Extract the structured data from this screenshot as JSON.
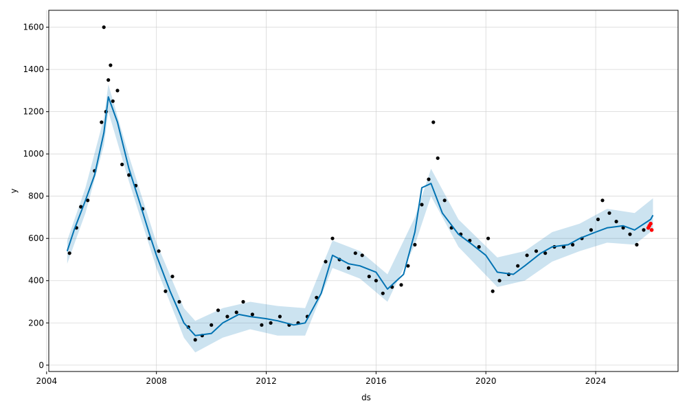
{
  "chart_data": {
    "type": "line",
    "xlabel": "ds",
    "ylabel": "y",
    "xlim": [
      "2004-01-30",
      "2027-01-01"
    ],
    "ylim": [
      -30,
      1680
    ],
    "x_ticks": [
      "2004-01-01",
      "2008-01-01",
      "2012-01-01",
      "2016-01-01",
      "2020-01-01",
      "2024-01-01"
    ],
    "x_tick_labels": [
      "2004",
      "2008",
      "2012",
      "2016",
      "2020",
      "2024"
    ],
    "y_ticks": [
      0,
      200,
      400,
      600,
      800,
      1000,
      1200,
      1400,
      1600
    ],
    "grid": true,
    "colors": {
      "forecast_line": "#0072B2",
      "uncertainty_band": "#0072B2",
      "observed_points": "#000000",
      "highlight_points": "#ff0000"
    },
    "series": [
      {
        "role": "forecast",
        "x": [
          "2004-10-01",
          "2005-01-01",
          "2005-06-01",
          "2005-10-01",
          "2006-02-01",
          "2006-04-01",
          "2006-08-01",
          "2007-01-01",
          "2007-06-01",
          "2007-10-01",
          "2008-01-01",
          "2008-07-01",
          "2009-01-01",
          "2009-06-01",
          "2010-01-01",
          "2010-06-01",
          "2011-01-01",
          "2011-06-01",
          "2012-01-01",
          "2012-06-01",
          "2013-01-01",
          "2013-06-01",
          "2014-01-01",
          "2014-06-01",
          "2015-01-01",
          "2015-06-01",
          "2016-01-01",
          "2016-06-01",
          "2017-01-01",
          "2017-06-01",
          "2017-09-01",
          "2018-01-01",
          "2018-06-01",
          "2019-01-01",
          "2019-06-01",
          "2020-01-01",
          "2020-06-01",
          "2021-01-01",
          "2021-06-01",
          "2022-01-01",
          "2022-06-01",
          "2023-01-01",
          "2023-06-01",
          "2024-01-01",
          "2024-06-01",
          "2025-01-01",
          "2025-06-01",
          "2026-01-01",
          "2026-02-01"
        ],
        "values": [
          540,
          640,
          780,
          900,
          1100,
          1270,
          1150,
          930,
          760,
          620,
          520,
          350,
          200,
          140,
          150,
          200,
          240,
          230,
          220,
          210,
          190,
          200,
          340,
          520,
          480,
          470,
          440,
          360,
          430,
          630,
          840,
          860,
          720,
          620,
          580,
          520,
          440,
          430,
          470,
          530,
          560,
          570,
          600,
          630,
          650,
          660,
          640,
          690,
          710
        ]
      },
      {
        "role": "uncertainty_upper",
        "x": [
          "2004-10-01",
          "2005-06-01",
          "2006-02-01",
          "2006-04-01",
          "2007-01-01",
          "2008-01-01",
          "2009-01-01",
          "2009-06-01",
          "2010-06-01",
          "2011-06-01",
          "2012-06-01",
          "2013-06-01",
          "2014-06-01",
          "2015-06-01",
          "2016-06-01",
          "2017-06-01",
          "2018-01-01",
          "2019-01-01",
          "2020-06-01",
          "2021-06-01",
          "2022-06-01",
          "2023-06-01",
          "2024-06-01",
          "2025-06-01",
          "2026-02-01"
        ],
        "values": [
          590,
          840,
          1170,
          1330,
          990,
          580,
          270,
          210,
          270,
          300,
          280,
          270,
          590,
          540,
          430,
          700,
          930,
          690,
          510,
          540,
          630,
          670,
          740,
          720,
          790
        ]
      },
      {
        "role": "uncertainty_lower",
        "x": [
          "2004-10-01",
          "2005-06-01",
          "2006-02-01",
          "2006-04-01",
          "2007-01-01",
          "2008-01-01",
          "2009-01-01",
          "2009-06-01",
          "2010-06-01",
          "2011-06-01",
          "2012-06-01",
          "2013-06-01",
          "2014-06-01",
          "2015-06-01",
          "2016-06-01",
          "2017-06-01",
          "2018-01-01",
          "2019-01-01",
          "2020-06-01",
          "2021-06-01",
          "2022-06-01",
          "2023-06-01",
          "2024-06-01",
          "2025-06-01",
          "2026-02-01"
        ],
        "values": [
          480,
          720,
          1040,
          1200,
          870,
          460,
          130,
          60,
          130,
          170,
          140,
          140,
          460,
          410,
          300,
          570,
          800,
          560,
          370,
          400,
          490,
          540,
          580,
          570,
          640
        ]
      },
      {
        "role": "observed",
        "x": [
          "2004-11-01",
          "2005-02-01",
          "2005-04-01",
          "2005-07-01",
          "2005-10-01",
          "2006-01-01",
          "2006-02-01",
          "2006-03-01",
          "2006-04-01",
          "2006-05-01",
          "2006-06-01",
          "2006-08-01",
          "2006-10-01",
          "2007-01-01",
          "2007-04-01",
          "2007-07-01",
          "2007-10-01",
          "2008-02-01",
          "2008-05-01",
          "2008-08-01",
          "2008-11-01",
          "2009-03-01",
          "2009-06-01",
          "2009-09-01",
          "2010-01-01",
          "2010-04-01",
          "2010-08-01",
          "2010-12-01",
          "2011-03-01",
          "2011-07-01",
          "2011-11-01",
          "2012-03-01",
          "2012-07-01",
          "2012-11-01",
          "2013-03-01",
          "2013-07-01",
          "2013-11-01",
          "2014-03-01",
          "2014-06-01",
          "2014-09-01",
          "2015-01-01",
          "2015-04-01",
          "2015-07-01",
          "2015-10-01",
          "2016-01-01",
          "2016-04-01",
          "2016-08-01",
          "2016-12-01",
          "2017-03-01",
          "2017-06-01",
          "2017-09-01",
          "2017-12-01",
          "2018-02-01",
          "2018-04-01",
          "2018-07-01",
          "2018-10-01",
          "2019-02-01",
          "2019-06-01",
          "2019-10-01",
          "2020-02-01",
          "2020-04-01",
          "2020-07-01",
          "2020-11-01",
          "2021-03-01",
          "2021-07-01",
          "2021-11-01",
          "2022-03-01",
          "2022-07-01",
          "2022-11-01",
          "2023-03-01",
          "2023-07-01",
          "2023-11-01",
          "2024-02-01",
          "2024-04-01",
          "2024-07-01",
          "2024-10-01",
          "2025-01-01",
          "2025-04-01",
          "2025-07-01",
          "2025-10-01"
        ],
        "values": [
          530,
          650,
          750,
          780,
          920,
          1150,
          1600,
          1200,
          1350,
          1420,
          1250,
          1300,
          950,
          900,
          850,
          740,
          600,
          540,
          350,
          420,
          300,
          180,
          120,
          140,
          190,
          260,
          230,
          250,
          300,
          240,
          190,
          200,
          230,
          190,
          200,
          230,
          320,
          490,
          600,
          500,
          460,
          530,
          520,
          420,
          400,
          340,
          370,
          380,
          470,
          570,
          760,
          880,
          1150,
          980,
          780,
          650,
          620,
          590,
          560,
          600,
          350,
          400,
          430,
          470,
          520,
          540,
          530,
          560,
          560,
          570,
          600,
          640,
          690,
          780,
          720,
          680,
          650,
          620,
          570,
          640
        ]
      },
      {
        "role": "highlight",
        "x": [
          "2025-12-01",
          "2025-12-15",
          "2026-01-01",
          "2026-01-15"
        ],
        "values": [
          650,
          660,
          670,
          640
        ]
      }
    ]
  }
}
